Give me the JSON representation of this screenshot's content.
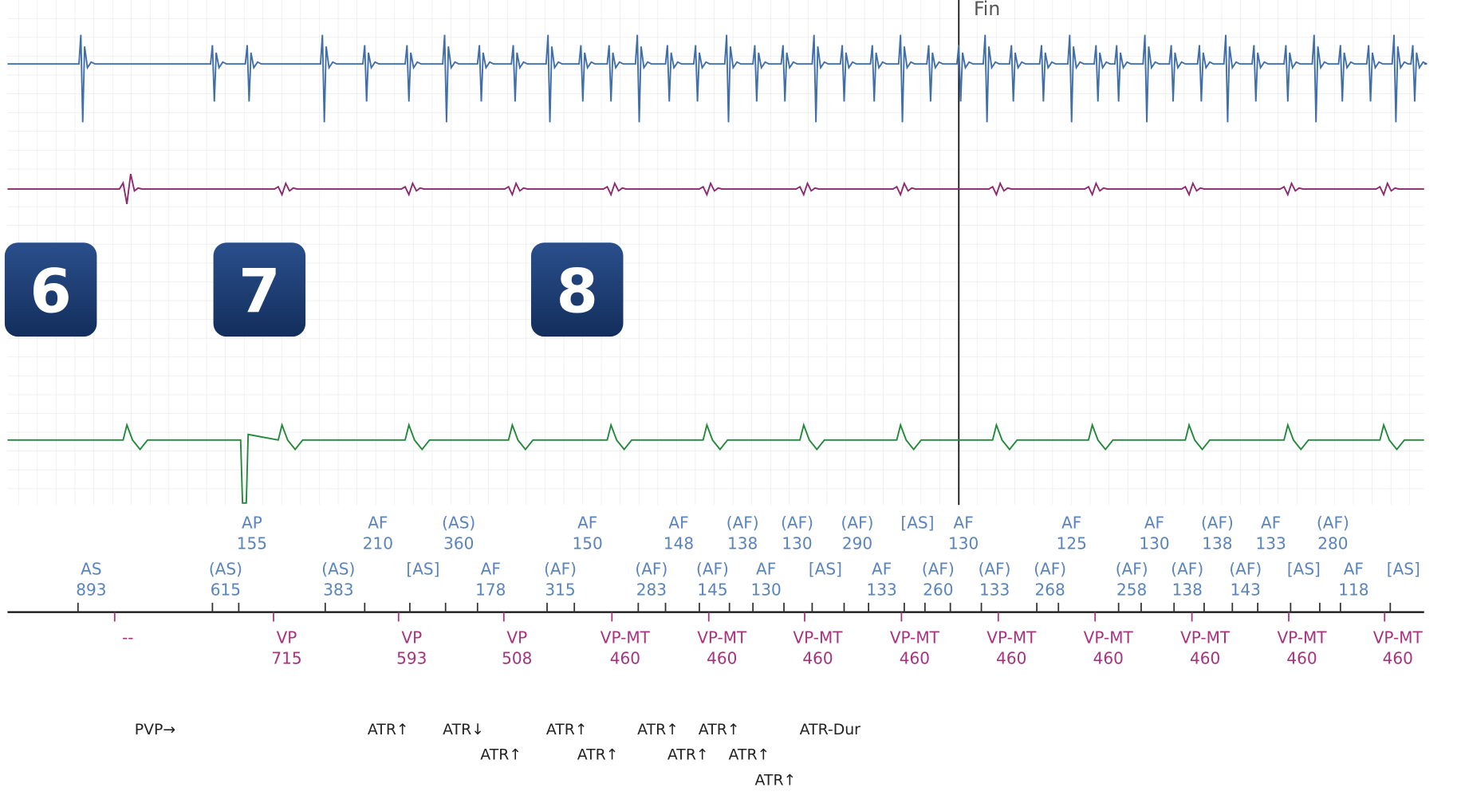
{
  "fin": "Fin",
  "badges": [
    "6",
    "7",
    "8"
  ],
  "atrial_top": [
    {
      "label": "AP",
      "value": 155
    },
    {
      "label": "AF",
      "value": 210
    },
    {
      "label": "(AS)",
      "value": 360
    },
    {
      "label": "AF",
      "value": 150
    },
    {
      "label": "AF",
      "value": 148
    },
    {
      "label": "(AF)",
      "value": 138
    },
    {
      "label": "(AF)",
      "value": 130
    },
    {
      "label": "(AF)",
      "value": 290
    },
    {
      "label": "[AS]"
    },
    {
      "label": "AF",
      "value": 130
    },
    {
      "label": "AF",
      "value": 125
    },
    {
      "label": "AF",
      "value": 130
    },
    {
      "label": "(AF)",
      "value": 138
    },
    {
      "label": "AF",
      "value": 133
    },
    {
      "label": "(AF)",
      "value": 280
    }
  ],
  "atrial_bottom": [
    {
      "label": "AS",
      "value": 893
    },
    {
      "label": "(AS)",
      "value": 615
    },
    {
      "label": "(AS)",
      "value": 383
    },
    {
      "label": "[AS]"
    },
    {
      "label": "AF",
      "value": 178
    },
    {
      "label": "(AF)",
      "value": 315
    },
    {
      "label": "(AF)",
      "value": 283
    },
    {
      "label": "(AF)",
      "value": 145
    },
    {
      "label": "AF",
      "value": 130
    },
    {
      "label": "[AS]"
    },
    {
      "label": "AF",
      "value": 133
    },
    {
      "label": "(AF)",
      "value": 260
    },
    {
      "label": "(AF)",
      "value": 133
    },
    {
      "label": "(AF)",
      "value": 268
    },
    {
      "label": "(AF)",
      "value": 258
    },
    {
      "label": "(AF)",
      "value": 138
    },
    {
      "label": "(AF)",
      "value": 143
    },
    {
      "label": "[AS]"
    },
    {
      "label": "AF",
      "value": 118
    },
    {
      "label": "[AS]"
    }
  ],
  "ventricular": [
    {
      "label": "--"
    },
    {
      "label": "VP",
      "value": 715
    },
    {
      "label": "VP",
      "value": 593
    },
    {
      "label": "VP",
      "value": 508
    },
    {
      "label": "VP-MT",
      "value": 460
    },
    {
      "label": "VP-MT",
      "value": 460
    },
    {
      "label": "VP-MT",
      "value": 460
    },
    {
      "label": "VP-MT",
      "value": 460
    },
    {
      "label": "VP-MT",
      "value": 460
    },
    {
      "label": "VP-MT",
      "value": 460
    },
    {
      "label": "VP-MT",
      "value": 460
    },
    {
      "label": "VP-MT",
      "value": 460
    },
    {
      "label": "VP-MT",
      "value": 460
    }
  ],
  "annotations": [
    "PVP→",
    "ATR↑",
    "ATR↓",
    "ATR↑",
    "ATR↑",
    "ATR↑",
    "ATR↑",
    "ATR↑",
    "ATR↑",
    "ATR↑",
    "ATR↑",
    "ATR-Dur"
  ]
}
